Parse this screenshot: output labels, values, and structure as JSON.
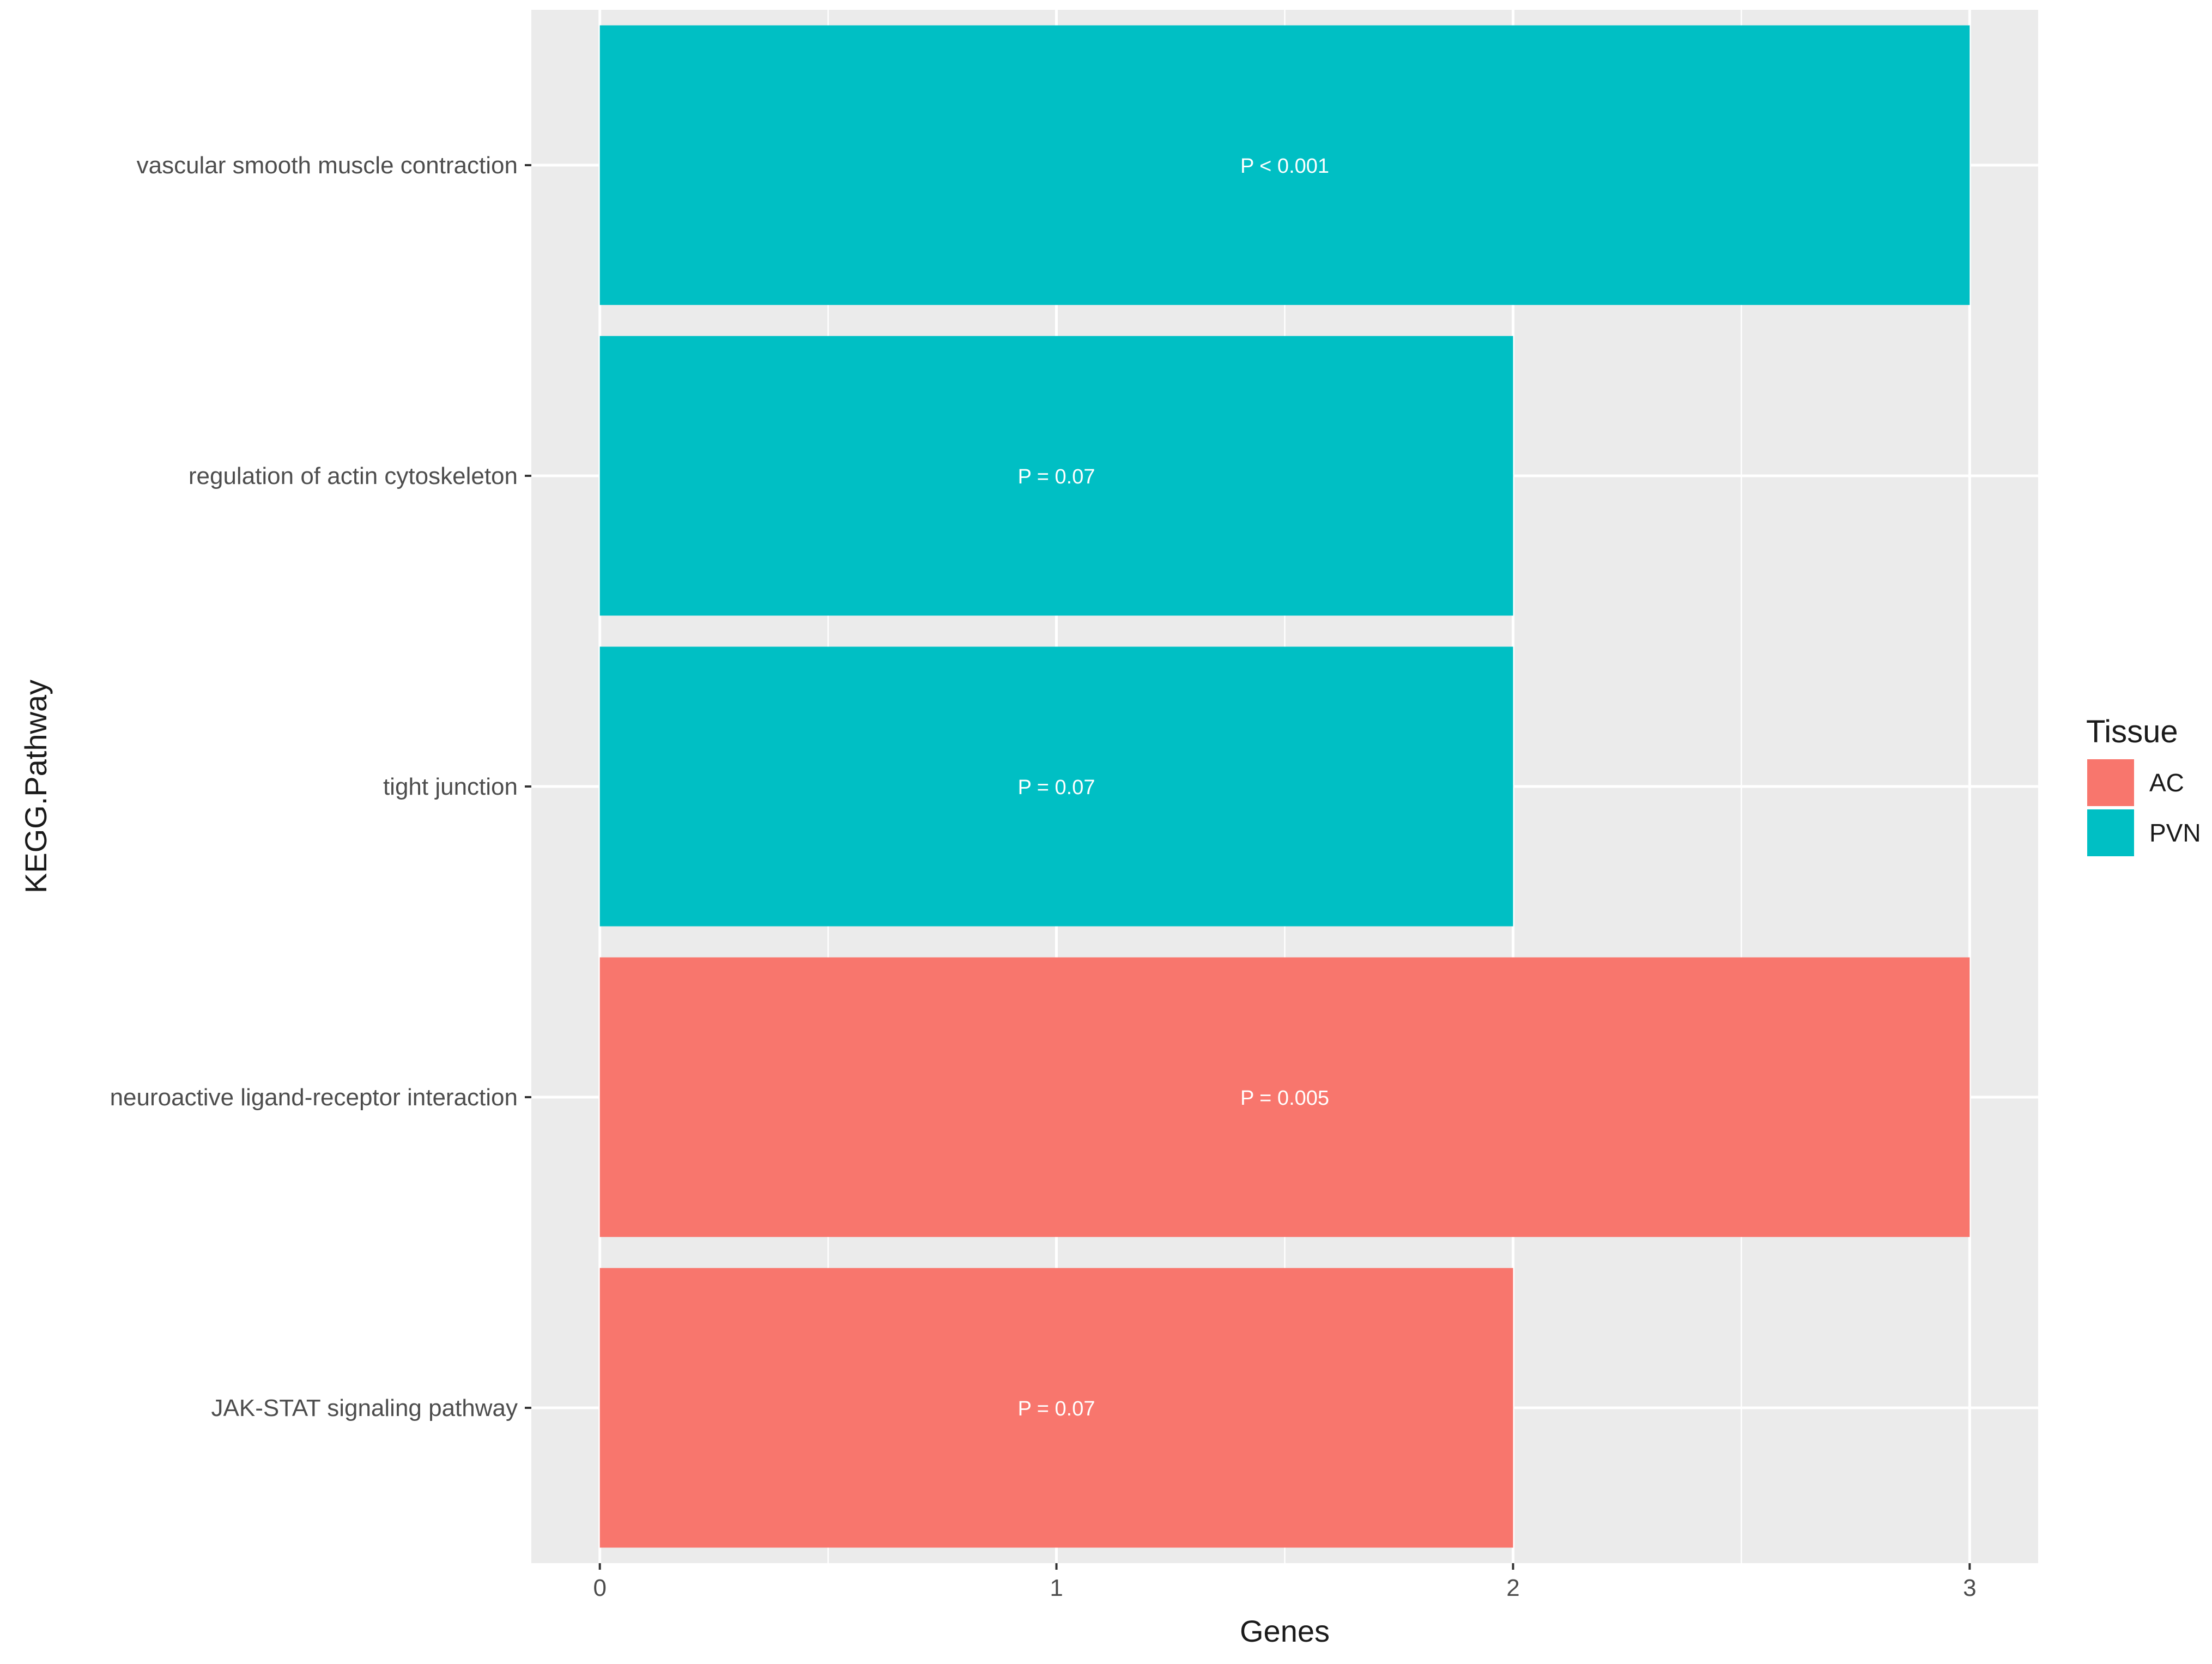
{
  "chart_data": {
    "type": "bar",
    "orientation": "horizontal",
    "title": "",
    "xlabel": "Genes",
    "ylabel": "KEGG.Pathway",
    "xlim": [
      -0.15,
      3.15
    ],
    "xticks": [
      0,
      1,
      2,
      3
    ],
    "grid": true,
    "categories": [
      "vascular smooth muscle contraction",
      "regulation of actin cytoskeleton",
      "tight junction",
      "neuroactive ligand-receptor interaction",
      "JAK-STAT signaling pathway"
    ],
    "values": [
      3,
      2,
      2,
      3,
      2
    ],
    "groups": [
      "PVN",
      "PVN",
      "PVN",
      "AC",
      "AC"
    ],
    "bar_labels": [
      "P < 0.001",
      "P = 0.07",
      "P = 0.07",
      "P = 0.005",
      "P = 0.07"
    ],
    "legend": {
      "title": "Tissue",
      "position": "right",
      "entries": [
        {
          "name": "AC",
          "color": "#F8766D"
        },
        {
          "name": "PVN",
          "color": "#00BFC4"
        }
      ]
    }
  },
  "colors": {
    "panel": "#EBEBEB",
    "grid": "#FFFFFF",
    "AC": "#F8766D",
    "PVN": "#00BFC4"
  }
}
